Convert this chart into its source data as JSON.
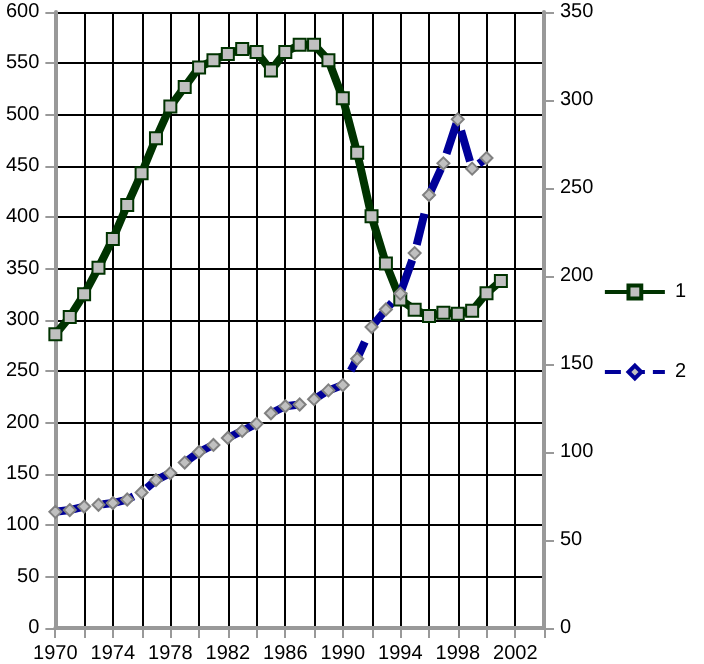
{
  "chart_data": {
    "type": "line",
    "xlim": [
      1970,
      2004
    ],
    "xticks": [
      1970,
      {
        "value": 1972,
        "label": null
      },
      1974,
      {
        "value": 1976,
        "label": null
      },
      1978,
      {
        "value": 1980,
        "label": null
      },
      1982,
      {
        "value": 1984,
        "label": null
      },
      1986,
      {
        "value": 1988,
        "label": null
      },
      1990,
      {
        "value": 1992,
        "label": null
      },
      1994,
      {
        "value": 1996,
        "label": null
      },
      1998,
      {
        "value": 2000,
        "label": null
      },
      2002,
      {
        "value": 2004,
        "label": null
      }
    ],
    "ylim": [
      0,
      600
    ],
    "yticks": [
      0,
      50,
      100,
      150,
      200,
      250,
      300,
      350,
      400,
      450,
      500,
      550,
      600
    ],
    "y2lim": [
      0,
      350
    ],
    "y2ticks": [
      0,
      50,
      100,
      150,
      200,
      250,
      300,
      350
    ],
    "grid": true,
    "legend": "right",
    "series": [
      {
        "name": "1",
        "color": "#003300",
        "marker": "square",
        "line_style": "solid",
        "x": [
          1970,
          1971,
          1972,
          1973,
          1974,
          1975,
          1976,
          1977,
          1978,
          1979,
          1980,
          1981,
          1982,
          1983,
          1984,
          1985,
          1986,
          1987,
          1988,
          1989,
          1990,
          1991,
          1992,
          1993,
          1994,
          1995,
          1996,
          1997,
          1998,
          1999,
          2000,
          2001
        ],
        "values": [
          286,
          303,
          325,
          351,
          379,
          412,
          443,
          477,
          508,
          527,
          546,
          553,
          559,
          564,
          561,
          543,
          561,
          568,
          568,
          553,
          516,
          463,
          401,
          355,
          320,
          310,
          304,
          307,
          306,
          309,
          326,
          338
        ]
      },
      {
        "name": "2",
        "color": "#000099",
        "marker": "diamond",
        "line_style": "dashed",
        "axis": "y2",
        "x": [
          1970,
          1971,
          1972,
          1973,
          1974,
          1975,
          1976,
          1977,
          1978,
          1979,
          1980,
          1981,
          1982,
          1983,
          1984,
          1985,
          1986,
          1987,
          1988,
          1989,
          1990,
          1991,
          1992,
          1993,
          1994,
          1995,
          1996,
          1997,
          1998,
          1999,
          2000
        ],
        "values": [
          66,
          67,
          69,
          70,
          71,
          73,
          77,
          84,
          88,
          94,
          100,
          104,
          108,
          112,
          116,
          122,
          126,
          127,
          130,
          135,
          138,
          153,
          171,
          181,
          190,
          213,
          246,
          264,
          289,
          261,
          267
        ]
      }
    ]
  }
}
